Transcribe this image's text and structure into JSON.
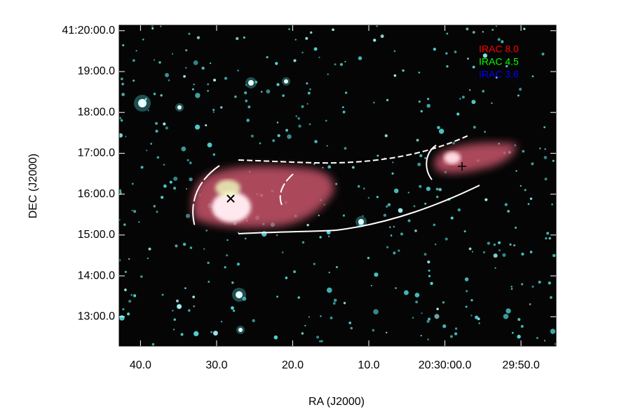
{
  "chart_data": {
    "type": "image",
    "xlabel": "RA (J2000)",
    "ylabel": "DEC (J2000)",
    "xlim": [
      1842.8,
      1785.4
    ],
    "ylim": [
      737,
      1208
    ],
    "xticks": [
      {
        "value": 1840,
        "label": "40.0"
      },
      {
        "value": 1830,
        "label": "30.0"
      },
      {
        "value": 1820,
        "label": "20.0"
      },
      {
        "value": 1810,
        "label": "10.0"
      },
      {
        "value": 1800,
        "label": "20:30:00.0"
      },
      {
        "value": 1790,
        "label": "29:50.0"
      }
    ],
    "yticks": [
      {
        "value": 1200,
        "label": "41:20:00.0"
      },
      {
        "value": 1140,
        "label": "19:00.0"
      },
      {
        "value": 1080,
        "label": "18:00.0"
      },
      {
        "value": 1020,
        "label": "17:00.0"
      },
      {
        "value": 960,
        "label": "16:00.0"
      },
      {
        "value": 900,
        "label": "15:00.0"
      },
      {
        "value": 840,
        "label": "14:00.0"
      },
      {
        "value": 780,
        "label": "13:00.0"
      }
    ],
    "series": [
      {
        "name": "IRAC 8.0",
        "color": "#ff0000"
      },
      {
        "name": "IRAC 4.5",
        "color": "#00ff00"
      },
      {
        "name": "IRAC 3.6",
        "color": "#0000ff"
      }
    ]
  }
}
